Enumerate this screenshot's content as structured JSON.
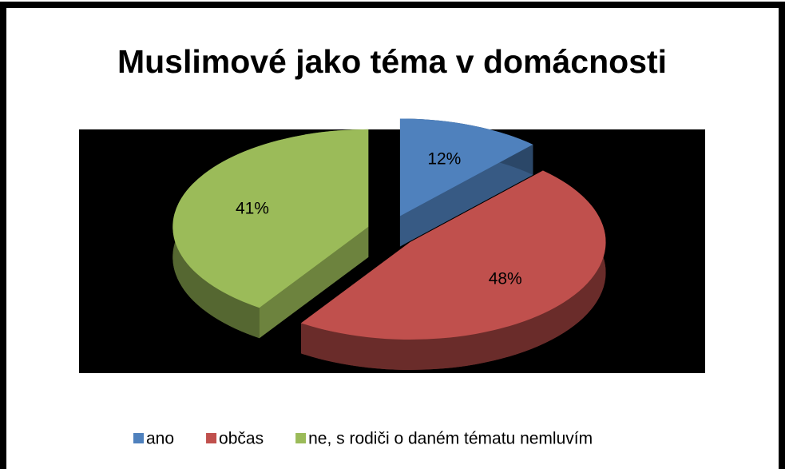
{
  "chart_data": {
    "type": "pie",
    "title": "Muslimové jako téma v domácnosti",
    "categories": [
      "ano",
      "občas",
      "ne, s rodiči o daném tématu nemluvím"
    ],
    "values": [
      12,
      48,
      41
    ],
    "value_labels": [
      "12%",
      "48%",
      "41%"
    ],
    "colors": [
      "#4f81bd",
      "#c0504d",
      "#9bbb59"
    ]
  }
}
